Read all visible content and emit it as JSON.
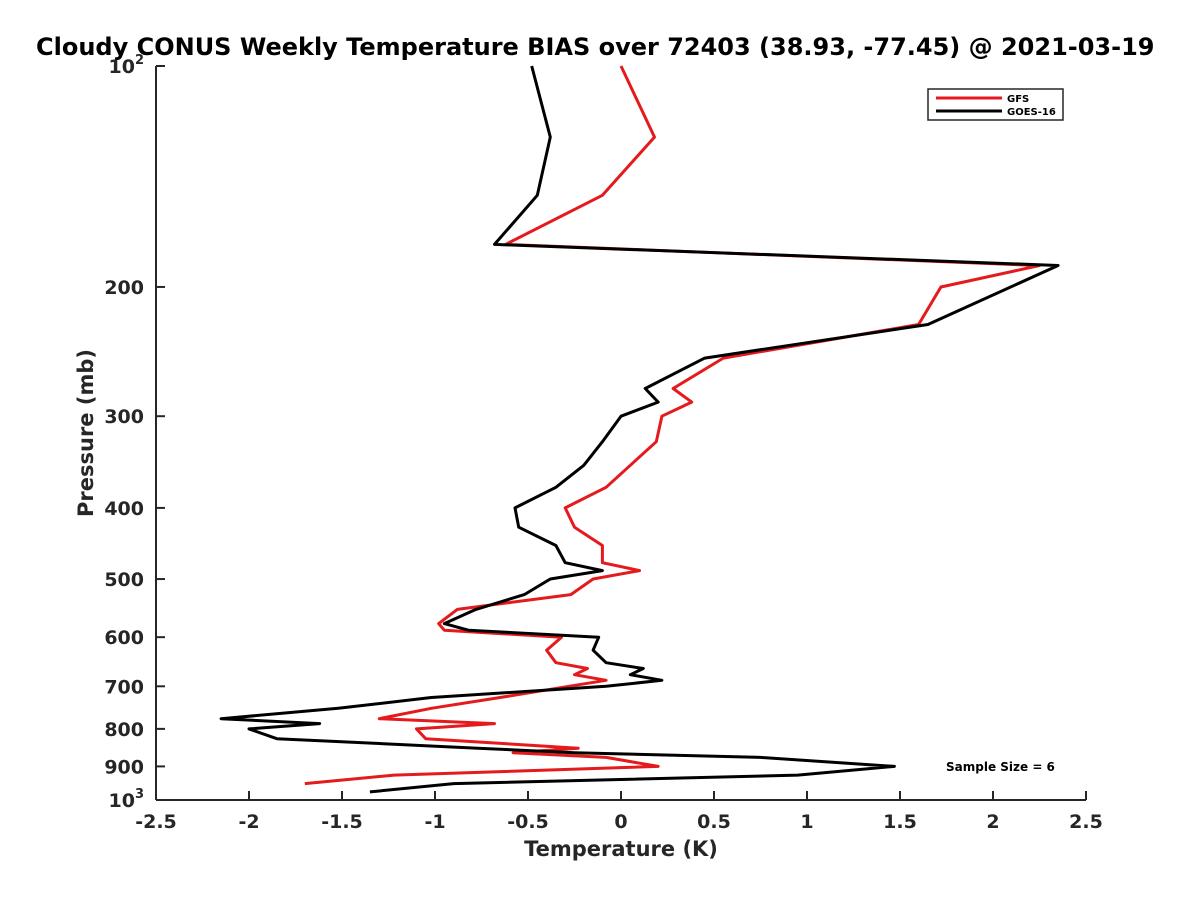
{
  "chart_data": {
    "type": "line",
    "title": "Cloudy CONUS Weekly Temperature BIAS over 72403 (38.93, -77.45) @ 2021-03-19",
    "xlabel": "Temperature (K)",
    "ylabel": "Pressure (mb)",
    "xlim": [
      -2.5,
      2.5
    ],
    "ylim": [
      1000,
      100
    ],
    "y_scale": "log",
    "x_ticks": [
      "-2.5",
      "-2",
      "-1.5",
      "-1",
      "-0.5",
      "0",
      "0.5",
      "1",
      "1.5",
      "2",
      "2.5"
    ],
    "y_ticks": [
      {
        "value": 100,
        "base": "10",
        "exp": "2"
      },
      {
        "value": 200,
        "label": "200"
      },
      {
        "value": 300,
        "label": "300"
      },
      {
        "value": 400,
        "label": "400"
      },
      {
        "value": 500,
        "label": "500"
      },
      {
        "value": 600,
        "label": "600"
      },
      {
        "value": 700,
        "label": "700"
      },
      {
        "value": 800,
        "label": "800"
      },
      {
        "value": 900,
        "label": "900"
      },
      {
        "value": 1000,
        "base": "10",
        "exp": "3"
      }
    ],
    "grid": false,
    "legend_position": "top-right",
    "series": [
      {
        "name": "GFS",
        "color": "#e41a1c",
        "points": [
          [
            0.0,
            100
          ],
          [
            0.18,
            125
          ],
          [
            -0.1,
            150
          ],
          [
            -0.62,
            175
          ],
          [
            2.25,
            187
          ],
          [
            1.72,
            200
          ],
          [
            1.6,
            225
          ],
          [
            0.55,
            250
          ],
          [
            0.28,
            275
          ],
          [
            0.38,
            287
          ],
          [
            0.22,
            300
          ],
          [
            0.19,
            325
          ],
          [
            0.05,
            350
          ],
          [
            -0.08,
            375
          ],
          [
            -0.3,
            400
          ],
          [
            -0.25,
            425
          ],
          [
            -0.1,
            450
          ],
          [
            -0.1,
            475
          ],
          [
            0.1,
            487
          ],
          [
            -0.15,
            500
          ],
          [
            -0.27,
            525
          ],
          [
            -0.88,
            550
          ],
          [
            -0.98,
            575
          ],
          [
            -0.95,
            587
          ],
          [
            -0.32,
            600
          ],
          [
            -0.4,
            625
          ],
          [
            -0.35,
            650
          ],
          [
            -0.18,
            662
          ],
          [
            -0.25,
            675
          ],
          [
            -0.08,
            687
          ],
          [
            -0.28,
            700
          ],
          [
            -0.65,
            725
          ],
          [
            -1.02,
            750
          ],
          [
            -1.3,
            775
          ],
          [
            -0.68,
            787
          ],
          [
            -1.1,
            800
          ],
          [
            -1.05,
            825
          ],
          [
            -0.23,
            850
          ],
          [
            -0.58,
            862
          ],
          [
            -0.08,
            875
          ],
          [
            0.2,
            900
          ],
          [
            -1.22,
            925
          ],
          [
            -1.7,
            950
          ]
        ]
      },
      {
        "name": "GOES-16",
        "color": "#000000",
        "points": [
          [
            -0.48,
            100
          ],
          [
            -0.38,
            125
          ],
          [
            -0.45,
            150
          ],
          [
            -0.68,
            175
          ],
          [
            2.35,
            187
          ],
          [
            1.65,
            225
          ],
          [
            0.45,
            250
          ],
          [
            0.13,
            275
          ],
          [
            0.2,
            287
          ],
          [
            0.0,
            300
          ],
          [
            -0.1,
            325
          ],
          [
            -0.2,
            350
          ],
          [
            -0.35,
            375
          ],
          [
            -0.57,
            400
          ],
          [
            -0.55,
            425
          ],
          [
            -0.35,
            450
          ],
          [
            -0.3,
            475
          ],
          [
            -0.1,
            487
          ],
          [
            -0.38,
            500
          ],
          [
            -0.52,
            525
          ],
          [
            -0.78,
            550
          ],
          [
            -0.95,
            575
          ],
          [
            -0.82,
            587
          ],
          [
            -0.12,
            600
          ],
          [
            -0.15,
            625
          ],
          [
            -0.08,
            650
          ],
          [
            0.12,
            662
          ],
          [
            0.05,
            675
          ],
          [
            0.22,
            687
          ],
          [
            -0.08,
            700
          ],
          [
            -1.02,
            725
          ],
          [
            -1.52,
            750
          ],
          [
            -2.15,
            775
          ],
          [
            -1.62,
            787
          ],
          [
            -2.0,
            800
          ],
          [
            -1.85,
            825
          ],
          [
            -0.77,
            850
          ],
          [
            -0.25,
            862
          ],
          [
            0.75,
            875
          ],
          [
            1.47,
            900
          ],
          [
            0.95,
            925
          ],
          [
            -0.9,
            950
          ],
          [
            -1.35,
            975
          ]
        ]
      }
    ],
    "annotation": "Sample Size = 6"
  }
}
